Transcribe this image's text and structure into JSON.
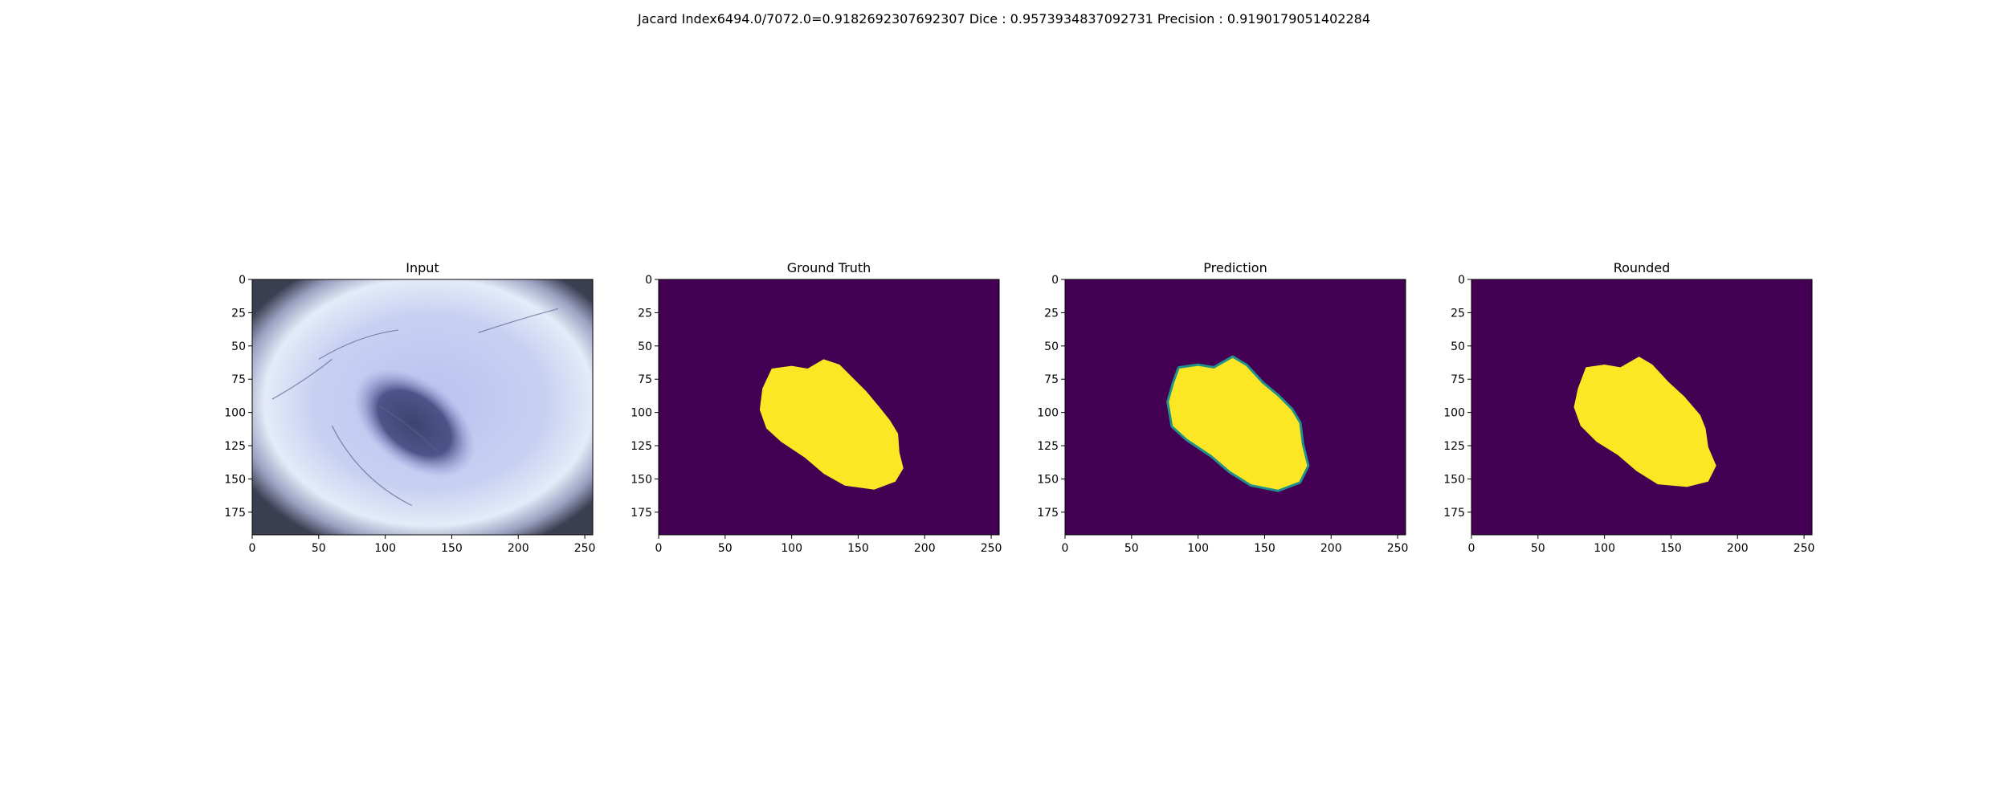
{
  "figure": {
    "suptitle": "Jacard Index6494.0/7072.0=0.9182692307692307 Dice : 0.9573934837092731 Precision : 0.9190179051402284"
  },
  "chart_data": [
    {
      "type": "heatmap",
      "title": "Input",
      "content": "dermoscopy image of skin lesion",
      "xlim": [
        0,
        256
      ],
      "ylim": [
        192,
        0
      ],
      "xticks": [
        0,
        50,
        100,
        150,
        200,
        250
      ],
      "yticks": [
        0,
        25,
        50,
        75,
        100,
        125,
        150,
        175
      ],
      "lesion_centroid": [
        122,
        108
      ]
    },
    {
      "type": "heatmap",
      "title": "Ground Truth",
      "content": "binary mask",
      "xlim": [
        0,
        256
      ],
      "ylim": [
        192,
        0
      ],
      "xticks": [
        0,
        50,
        100,
        150,
        200,
        250
      ],
      "yticks": [
        0,
        25,
        50,
        75,
        100,
        125,
        150,
        175
      ],
      "mask_outline": [
        [
          85,
          67
        ],
        [
          100,
          65
        ],
        [
          112,
          67
        ],
        [
          124,
          60
        ],
        [
          136,
          64
        ],
        [
          146,
          74
        ],
        [
          156,
          84
        ],
        [
          166,
          96
        ],
        [
          174,
          106
        ],
        [
          180,
          116
        ],
        [
          181,
          130
        ],
        [
          184,
          142
        ],
        [
          178,
          152
        ],
        [
          162,
          158
        ],
        [
          140,
          155
        ],
        [
          124,
          146
        ],
        [
          110,
          134
        ],
        [
          92,
          122
        ],
        [
          81,
          112
        ],
        [
          76,
          98
        ],
        [
          78,
          82
        ]
      ]
    },
    {
      "type": "heatmap",
      "title": "Prediction",
      "content": "predicted probability map",
      "xlim": [
        0,
        256
      ],
      "ylim": [
        192,
        0
      ],
      "xticks": [
        0,
        50,
        100,
        150,
        200,
        250
      ],
      "yticks": [
        0,
        25,
        50,
        75,
        100,
        125,
        150,
        175
      ],
      "mask_outline": [
        [
          86,
          67
        ],
        [
          100,
          65
        ],
        [
          112,
          67
        ],
        [
          126,
          59
        ],
        [
          136,
          65
        ],
        [
          148,
          78
        ],
        [
          160,
          88
        ],
        [
          170,
          98
        ],
        [
          176,
          108
        ],
        [
          178,
          124
        ],
        [
          182,
          140
        ],
        [
          176,
          152
        ],
        [
          160,
          158
        ],
        [
          140,
          154
        ],
        [
          124,
          144
        ],
        [
          110,
          132
        ],
        [
          92,
          120
        ],
        [
          81,
          110
        ],
        [
          78,
          92
        ],
        [
          82,
          78
        ]
      ]
    },
    {
      "type": "heatmap",
      "title": "Rounded",
      "content": "thresholded prediction",
      "xlim": [
        0,
        256
      ],
      "ylim": [
        192,
        0
      ],
      "xticks": [
        0,
        50,
        100,
        150,
        200,
        250
      ],
      "yticks": [
        0,
        25,
        50,
        75,
        100,
        125,
        150,
        175
      ],
      "mask_outline": [
        [
          86,
          66
        ],
        [
          100,
          64
        ],
        [
          112,
          66
        ],
        [
          126,
          58
        ],
        [
          136,
          64
        ],
        [
          148,
          77
        ],
        [
          160,
          88
        ],
        [
          172,
          102
        ],
        [
          176,
          112
        ],
        [
          178,
          126
        ],
        [
          184,
          140
        ],
        [
          178,
          152
        ],
        [
          162,
          156
        ],
        [
          140,
          154
        ],
        [
          124,
          144
        ],
        [
          110,
          132
        ],
        [
          94,
          122
        ],
        [
          82,
          110
        ],
        [
          77,
          96
        ],
        [
          80,
          82
        ]
      ]
    }
  ],
  "colors": {
    "background": "#440154",
    "foreground": "#fde725",
    "edge": "#21918c",
    "skin_light": "#e4ebf8",
    "skin_mid": "#b9c2ee",
    "vignette": "#3c3f52",
    "lesion": "#3e4470"
  }
}
